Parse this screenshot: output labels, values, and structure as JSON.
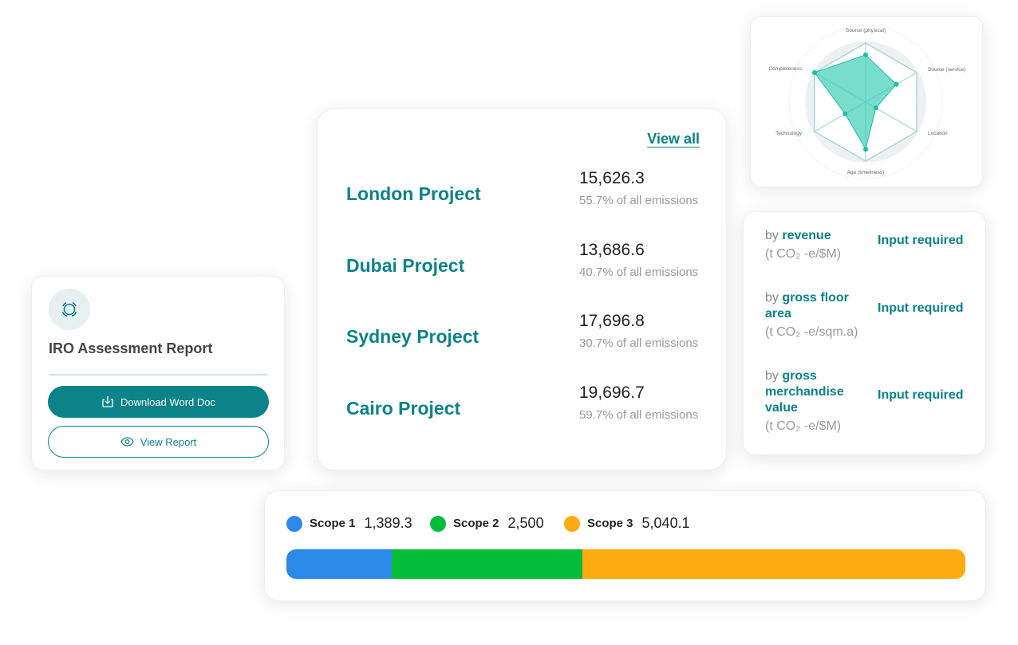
{
  "radar": {
    "axes": [
      "Source (physical)",
      "Source (service)",
      "Location",
      "Age (timeliness)",
      "Technology",
      "Completeness"
    ],
    "values": [
      4,
      3,
      1,
      4,
      2,
      5
    ],
    "max": 5,
    "fill_color": "#3fcfb6"
  },
  "iro": {
    "icon": "loading-circle-icon",
    "title": "IRO Assessment Report",
    "download_label": "Download Word Doc",
    "view_label": "View Report"
  },
  "projects": {
    "view_all": "View all",
    "items": [
      {
        "name": "London Project",
        "value": "15,626.3",
        "share": "55.7% of all emissions"
      },
      {
        "name": "Dubai Project",
        "value": "13,686.6",
        "share": "40.7% of all emissions"
      },
      {
        "name": "Sydney Project",
        "value": "17,696.8",
        "share": "30.7% of all emissions"
      },
      {
        "name": "Cairo Project",
        "value": "19,696.7",
        "share": "59.7% of all emissions"
      }
    ]
  },
  "intensity": [
    {
      "prefix": "by ",
      "metric": "revenue",
      "unit": "(t CO₂ -e/$M)",
      "status": "Input required"
    },
    {
      "prefix": "by ",
      "metric": "gross floor area",
      "unit": "(t CO₂ -e/sqm.a)",
      "status": "Input required"
    },
    {
      "prefix": "by ",
      "metric": "gross merchandise value",
      "unit": "(t CO₂ -e/$M)",
      "status": "Input required"
    }
  ],
  "scopes": [
    {
      "label": "Scope 1",
      "value": "1,389.3",
      "amount": 1389.3,
      "color": "#2b8ae8"
    },
    {
      "label": "Scope 2",
      "value": "2,500",
      "amount": 2500,
      "color": "#04be3a"
    },
    {
      "label": "Scope 3",
      "value": "5,040.1",
      "amount": 5040.1,
      "color": "#fdab0f"
    }
  ],
  "accent": "#0b8389"
}
